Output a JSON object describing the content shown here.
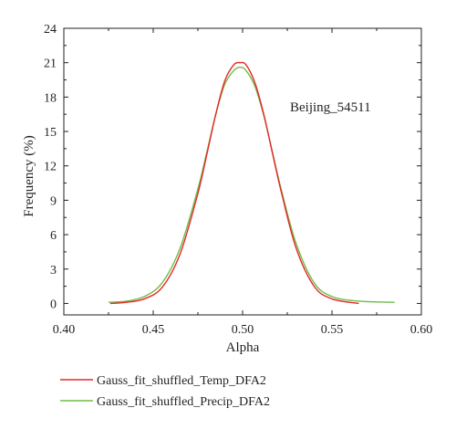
{
  "chart_data": {
    "type": "line",
    "title": "",
    "xlabel": "Alpha",
    "ylabel": "Frequency (%)",
    "xlim": [
      0.4,
      0.6
    ],
    "ylim": [
      -1,
      24
    ],
    "x_ticks": [
      "0.40",
      "0.45",
      "0.50",
      "0.55",
      "0.60"
    ],
    "y_ticks": [
      "0",
      "3",
      "6",
      "9",
      "12",
      "15",
      "18",
      "21",
      "24"
    ],
    "annotation": "Beijing_54511",
    "grid": false,
    "legend_position": "bottom",
    "series": [
      {
        "name": "Gauss_fit_shuffled_Temp_DFA2",
        "color": "#e8262b",
        "x": [
          0.426,
          0.435,
          0.445,
          0.455,
          0.465,
          0.475,
          0.48,
          0.485,
          0.49,
          0.495,
          0.4985,
          0.502,
          0.507,
          0.512,
          0.517,
          0.522,
          0.53,
          0.54,
          0.55,
          0.565
        ],
        "y": [
          0.0,
          0.1,
          0.4,
          1.4,
          4.3,
          9.6,
          13.0,
          16.5,
          19.4,
          20.8,
          21.0,
          20.8,
          19.2,
          16.4,
          12.9,
          9.5,
          4.8,
          1.5,
          0.4,
          0.0
        ]
      },
      {
        "name": "Gauss_fit_shuffled_Precip_DFA2",
        "color": "#6dbe45",
        "x": [
          0.425,
          0.435,
          0.445,
          0.455,
          0.465,
          0.475,
          0.48,
          0.485,
          0.49,
          0.495,
          0.4985,
          0.502,
          0.507,
          0.512,
          0.517,
          0.522,
          0.53,
          0.54,
          0.55,
          0.565,
          0.585
        ],
        "y": [
          0.1,
          0.2,
          0.6,
          1.8,
          4.8,
          10.0,
          13.2,
          16.5,
          19.1,
          20.3,
          20.6,
          20.3,
          18.9,
          16.3,
          13.0,
          9.7,
          5.2,
          1.8,
          0.6,
          0.2,
          0.1
        ]
      }
    ]
  }
}
